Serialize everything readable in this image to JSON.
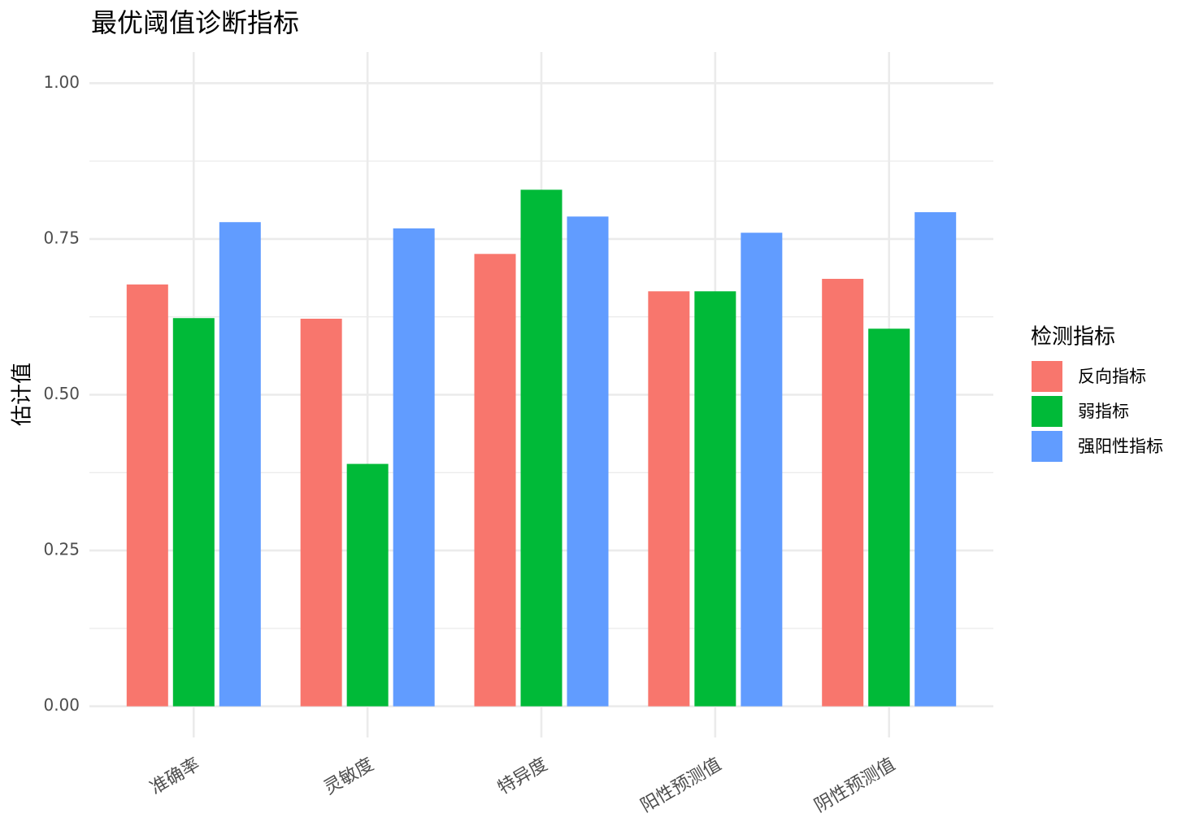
{
  "chart_data": {
    "type": "bar",
    "title": "最优阈值诊断指标",
    "y_label": "估计值",
    "categories": [
      "准确率",
      "灵敏度",
      "特异度",
      "阳性预测值",
      "阴性预测值"
    ],
    "series": [
      {
        "name": "反向指标",
        "color": "#F8766D",
        "values": [
          0.677,
          0.622,
          0.726,
          0.666,
          0.686
        ]
      },
      {
        "name": "弱指标",
        "color": "#00BA38",
        "values": [
          0.623,
          0.389,
          0.829,
          0.666,
          0.606
        ]
      },
      {
        "name": "强阳性指标",
        "color": "#619CFF",
        "values": [
          0.777,
          0.767,
          0.786,
          0.76,
          0.793
        ]
      }
    ],
    "legend_title": "检测指标",
    "legend": "right",
    "ylim": [
      -0.05,
      1.05
    ],
    "yticks": [
      {
        "value": 0,
        "label": "0.00"
      },
      {
        "value": 0.25,
        "label": "0.25"
      },
      {
        "value": 0.5,
        "label": "0.50"
      },
      {
        "value": 0.75,
        "label": "0.75"
      },
      {
        "value": 1,
        "label": "1.00"
      }
    ],
    "grid": true
  }
}
